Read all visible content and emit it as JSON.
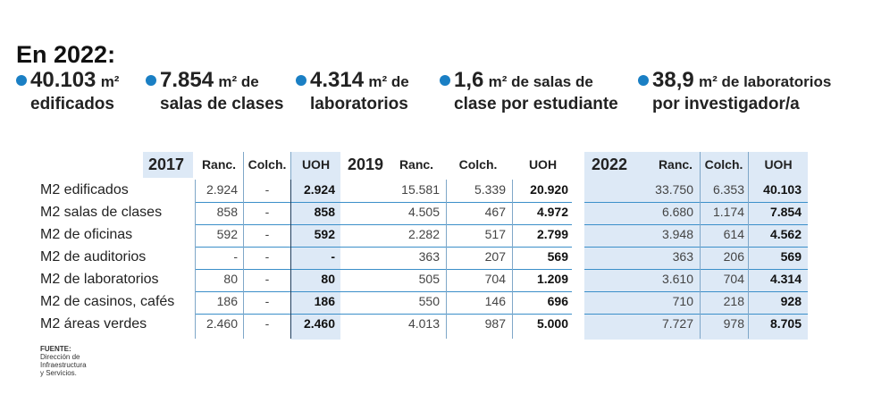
{
  "headline": "En 2022:",
  "stats": [
    {
      "value": "40.103",
      "unit": "m²",
      "rest": "",
      "line2": "edificados"
    },
    {
      "value": "7.854",
      "unit": "m²",
      "rest": " de",
      "line2": "salas de clases"
    },
    {
      "value": "4.314",
      "unit": "m²",
      "rest": " de",
      "line2": "laboratorios"
    },
    {
      "value": "1,6",
      "unit": "m²",
      "rest": " de salas de",
      "line2": "clase por estudiante"
    },
    {
      "value": "38,9",
      "unit": "m²",
      "rest": " de laboratorios",
      "line2": "por investigador/a"
    }
  ],
  "table": {
    "years": [
      "2017",
      "2019",
      "2022"
    ],
    "col_headers": [
      "Ranc.",
      "Colch.",
      "UOH"
    ],
    "rows": [
      {
        "label": "M2 edificados",
        "y2017": [
          "2.924",
          "-",
          "2.924"
        ],
        "y2019": [
          "15.581",
          "5.339",
          "20.920"
        ],
        "y2022": [
          "33.750",
          "6.353",
          "40.103"
        ]
      },
      {
        "label": "M2 salas de clases",
        "y2017": [
          "858",
          "-",
          "858"
        ],
        "y2019": [
          "4.505",
          "467",
          "4.972"
        ],
        "y2022": [
          "6.680",
          "1.174",
          "7.854"
        ]
      },
      {
        "label": "M2 de oficinas",
        "y2017": [
          "592",
          "-",
          "592"
        ],
        "y2019": [
          "2.282",
          "517",
          "2.799"
        ],
        "y2022": [
          "3.948",
          "614",
          "4.562"
        ]
      },
      {
        "label": "M2 de auditorios",
        "y2017": [
          "-",
          "-",
          "-"
        ],
        "y2019": [
          "363",
          "207",
          "569"
        ],
        "y2022": [
          "363",
          "206",
          "569"
        ]
      },
      {
        "label": "M2 de laboratorios",
        "y2017": [
          "80",
          "-",
          "80"
        ],
        "y2019": [
          "505",
          "704",
          "1.209"
        ],
        "y2022": [
          "3.610",
          "704",
          "4.314"
        ]
      },
      {
        "label": "M2 de casinos, cafés",
        "y2017": [
          "186",
          "-",
          "186"
        ],
        "y2019": [
          "550",
          "146",
          "696"
        ],
        "y2022": [
          "710",
          "218",
          "928"
        ]
      },
      {
        "label": "M2 áreas verdes",
        "y2017": [
          "2.460",
          "-",
          "2.460"
        ],
        "y2019": [
          "4.013",
          "987",
          "5.000"
        ],
        "y2022": [
          "7.727",
          "978",
          "8.705"
        ]
      }
    ]
  },
  "source": {
    "label": "FUENTE:",
    "text": " Dirección de Infraestructura y Servicios."
  },
  "colors": {
    "accent": "#1a7fc4",
    "shade": "#dde9f6",
    "rule": "#3b8fc9"
  }
}
